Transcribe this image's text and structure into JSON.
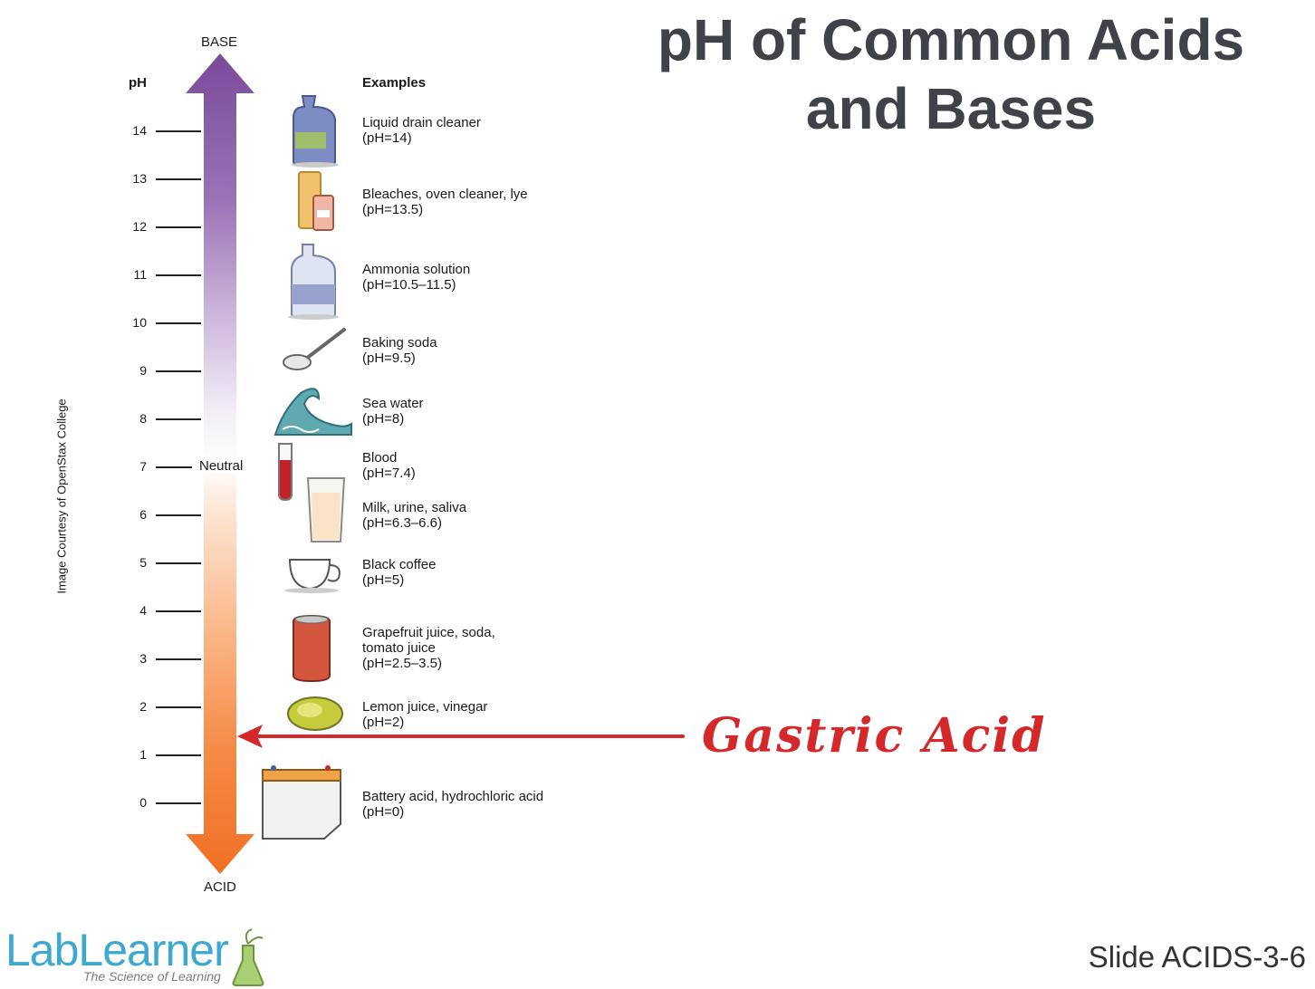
{
  "title": [
    "pH of Common Acids",
    "and Bases"
  ],
  "scale": {
    "top_label": "BASE",
    "bottom_label": "ACID",
    "column_header": "pH",
    "neutral_label": "Neutral",
    "ticks": [
      "14",
      "13",
      "12",
      "11",
      "10",
      "9",
      "8",
      "7",
      "6",
      "5",
      "4",
      "3",
      "2",
      "1",
      "0"
    ]
  },
  "examples_header": "Examples",
  "examples": [
    {
      "name": "Liquid drain cleaner",
      "value": "(pH=14)",
      "icon": "drain-cleaner-bottle-icon"
    },
    {
      "name": "Bleaches, oven cleaner, lye",
      "value": "(pH=13.5)",
      "icon": "bleach-containers-icon"
    },
    {
      "name": "Ammonia solution",
      "value": "(pH=10.5–11.5)",
      "icon": "ammonia-jug-icon"
    },
    {
      "name": "Baking soda",
      "value": "(pH=9.5)",
      "icon": "spoon-icon"
    },
    {
      "name": "Sea water",
      "value": "(pH=8)",
      "icon": "wave-icon"
    },
    {
      "name": "Blood",
      "value": "(pH=7.4)",
      "icon": "test-tube-icon"
    },
    {
      "name": "Milk, urine, saliva",
      "value": "(pH=6.3–6.6)",
      "icon": "glass-icon"
    },
    {
      "name": "Black coffee",
      "value": "(pH=5)",
      "icon": "coffee-cup-icon"
    },
    {
      "name": "Grapefruit juice, soda,",
      "name2": "tomato juice",
      "value": "(pH=2.5–3.5)",
      "icon": "soda-can-icon"
    },
    {
      "name": "Lemon juice, vinegar",
      "value": "(pH=2)",
      "icon": "lemon-icon"
    },
    {
      "name": "Battery acid, hydrochloric acid",
      "value": "(pH=0)",
      "icon": "battery-icon"
    }
  ],
  "credit": "Image Courtesy of OpenStax College",
  "annotation": {
    "text": "Gastric Acid",
    "color": "#d5282b"
  },
  "colors": {
    "base_purple": "#7b4a9a",
    "acid_orange": "#f07024",
    "title_gray": "#3f4249",
    "logo_blue": "#3da9d0"
  },
  "footer": {
    "slide_id": "Slide ACIDS-3-6",
    "logo_name": "LabLearner",
    "logo_tagline": "The Science of Learning"
  }
}
